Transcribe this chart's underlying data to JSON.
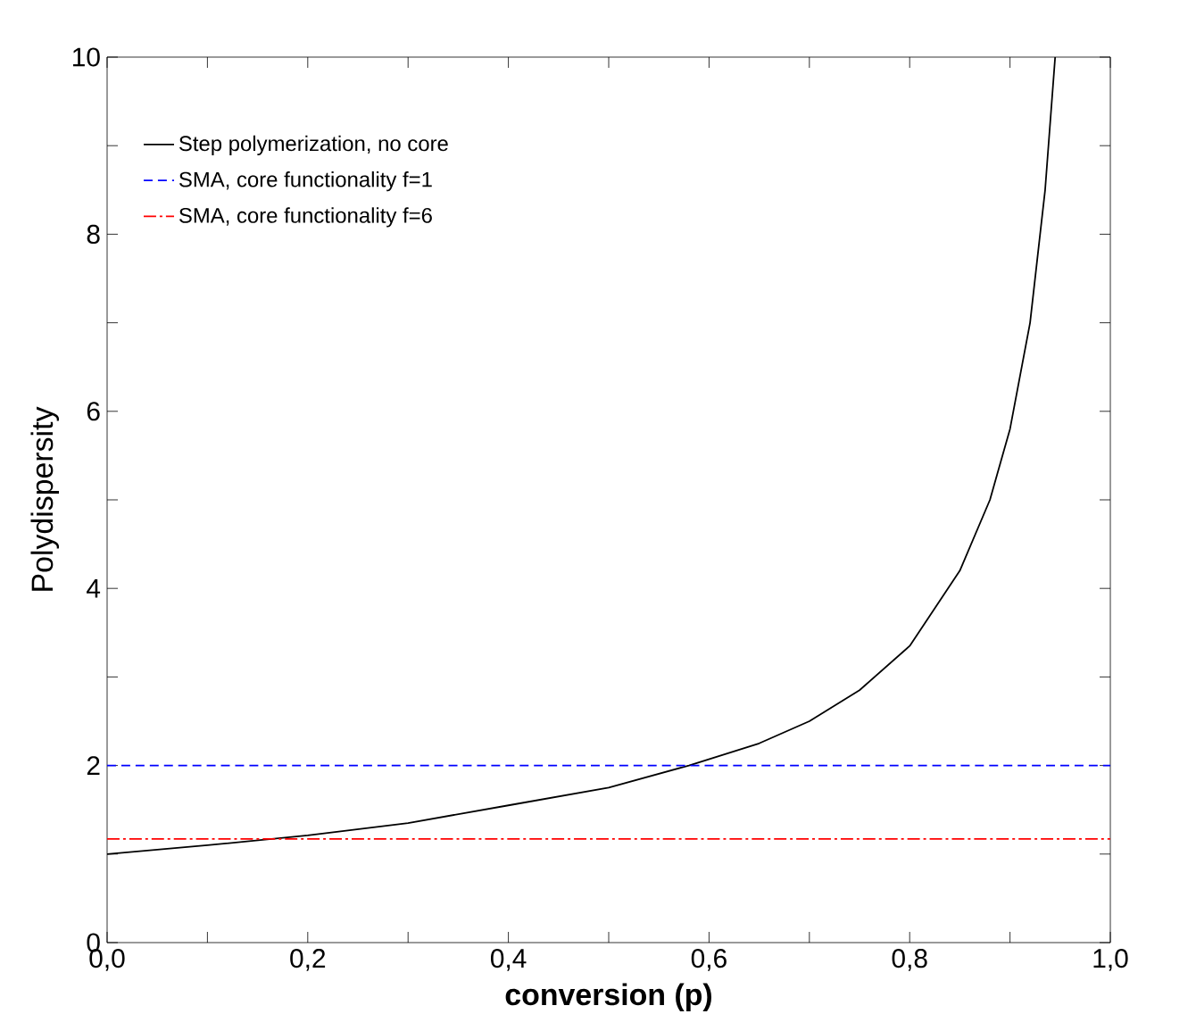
{
  "chart_data": {
    "type": "line",
    "xlabel": "conversion (p)",
    "ylabel": "Polydispersity",
    "xlim": [
      0,
      1
    ],
    "ylim": [
      0,
      10
    ],
    "xticks": [
      {
        "value": 0,
        "label": "0,0"
      },
      {
        "value": 0.1,
        "label": null
      },
      {
        "value": 0.2,
        "label": "0,2"
      },
      {
        "value": 0.3,
        "label": null
      },
      {
        "value": 0.4,
        "label": "0,4"
      },
      {
        "value": 0.5,
        "label": null
      },
      {
        "value": 0.6,
        "label": "0,6"
      },
      {
        "value": 0.7,
        "label": null
      },
      {
        "value": 0.8,
        "label": "0,8"
      },
      {
        "value": 0.9,
        "label": null
      },
      {
        "value": 1,
        "label": "1,0"
      }
    ],
    "yticks": [
      0,
      {
        "value": 1,
        "label": null
      },
      2,
      {
        "value": 3,
        "label": null
      },
      4,
      {
        "value": 5,
        "label": null
      },
      6,
      {
        "value": 7,
        "label": null
      },
      8,
      {
        "value": 9,
        "label": null
      },
      10
    ],
    "grid": false,
    "legend": "top left",
    "marker": "none",
    "series": [
      {
        "name": "Step polymerization, no core",
        "color": "#000000",
        "line_style": "solid",
        "x": [
          0,
          0.1,
          0.2,
          0.3,
          0.4,
          0.5,
          0.58,
          0.65,
          0.7,
          0.75,
          0.8,
          0.85,
          0.88,
          0.9,
          0.92,
          0.935,
          0.945
        ],
        "values": [
          1.0,
          1.1,
          1.21,
          1.35,
          1.55,
          1.75,
          2.0,
          2.25,
          2.5,
          2.85,
          3.35,
          4.2,
          5.0,
          5.8,
          7.0,
          8.5,
          10
        ]
      },
      {
        "name": "SMA, core functionality f=1",
        "color": "#0000ff",
        "line_style": "dashed",
        "x": [
          0,
          1
        ],
        "values": [
          2,
          2
        ]
      },
      {
        "name": "SMA, core functionality f=6",
        "color": "#ff0000",
        "line_style": "dashdot",
        "x": [
          0,
          1
        ],
        "values": [
          1.17,
          1.17
        ]
      }
    ]
  }
}
